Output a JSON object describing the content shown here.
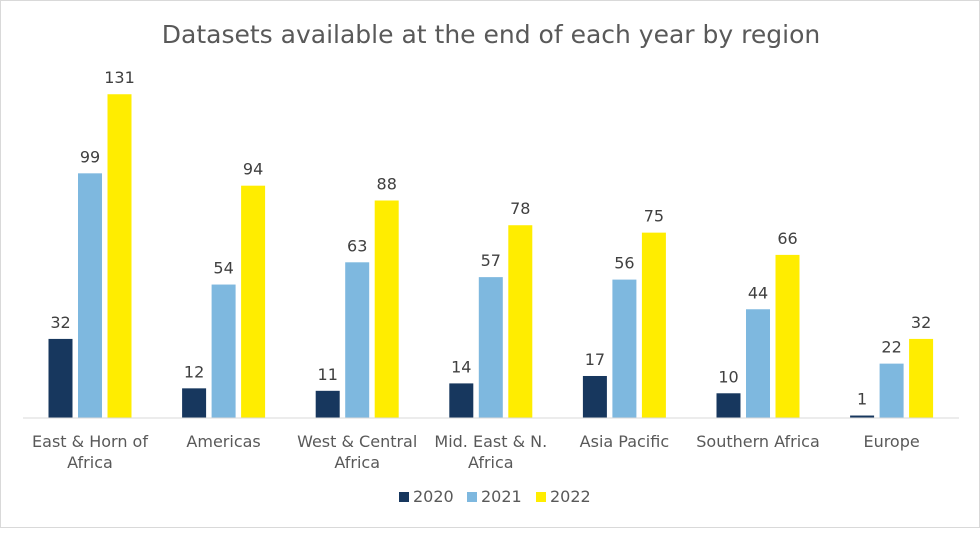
{
  "chart_data": {
    "type": "bar",
    "title": "Datasets available at the end of each year by region",
    "categories": [
      [
        "East & Horn of",
        "Africa"
      ],
      [
        "Americas"
      ],
      [
        "West & Central",
        "Africa"
      ],
      [
        "Mid. East & N.",
        "Africa"
      ],
      [
        "Asia Pacific"
      ],
      [
        "Southern Africa"
      ],
      [
        "Europe"
      ]
    ],
    "series": [
      {
        "name": "2020",
        "color": "#17375e",
        "values": [
          32,
          12,
          11,
          14,
          17,
          10,
          1
        ]
      },
      {
        "name": "2021",
        "color": "#7eb8df",
        "values": [
          99,
          54,
          63,
          57,
          56,
          44,
          22
        ]
      },
      {
        "name": "2022",
        "color": "#ffed00",
        "values": [
          131,
          94,
          88,
          78,
          75,
          66,
          32
        ]
      }
    ],
    "ylim": [
      0,
      140
    ],
    "grid": false,
    "legend": "bottom",
    "data_labels": true
  }
}
